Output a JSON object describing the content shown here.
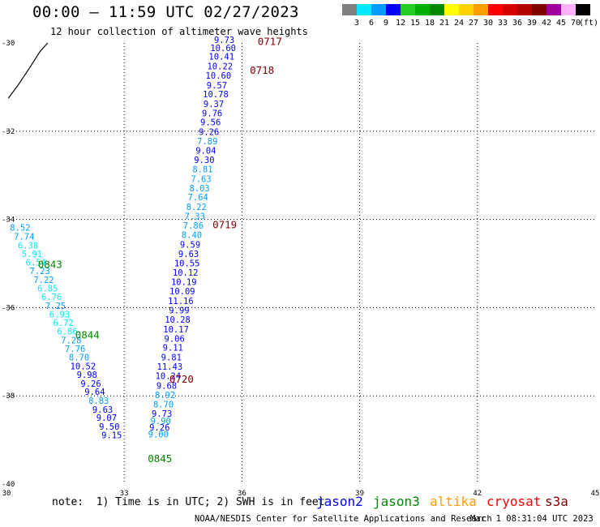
{
  "header": {
    "title": "00:00 – 11:59 UTC 02/27/2023",
    "subtitle": "12 hour collection of altimeter wave heights"
  },
  "legend": {
    "unit": "(ft)",
    "colors": [
      {
        "value": "3",
        "color": "#7f7f7f"
      },
      {
        "value": "6",
        "color": "#00e8ff"
      },
      {
        "value": "9",
        "color": "#009cff"
      },
      {
        "value": "12",
        "color": "#0000ff"
      },
      {
        "value": "15",
        "color": "#22cc22"
      },
      {
        "value": "18",
        "color": "#00b000"
      },
      {
        "value": "21",
        "color": "#008800"
      },
      {
        "value": "24",
        "color": "#ffff00"
      },
      {
        "value": "27",
        "color": "#ffd200"
      },
      {
        "value": "30",
        "color": "#ff9c00"
      },
      {
        "value": "33",
        "color": "#ff0000"
      },
      {
        "value": "36",
        "color": "#d70000"
      },
      {
        "value": "39",
        "color": "#b00000"
      },
      {
        "value": "42",
        "color": "#7f0000"
      },
      {
        "value": "45",
        "color": "#a000a0"
      },
      {
        "value": "70",
        "color": "#ffb0ff"
      },
      {
        "value": "",
        "color": "#000000"
      }
    ]
  },
  "map": {
    "lat_range": [
      -40,
      -30
    ],
    "lon_range": [
      30,
      45
    ],
    "lat_ticks": [
      "-30",
      "-32",
      "-34",
      "-36",
      "-38",
      "-40"
    ],
    "lon_ticks": [
      "30",
      "33",
      "36",
      "39",
      "42",
      "45"
    ]
  },
  "passes": [
    {
      "time": "0717",
      "lat": -30.05,
      "lon": 36.4,
      "color": "#7f0000"
    },
    {
      "time": "0718",
      "lat": -30.7,
      "lon": 36.2,
      "color": "#7f0000"
    },
    {
      "time": "0719",
      "lat": -34.2,
      "lon": 35.25,
      "color": "#7f0000"
    },
    {
      "time": "0720",
      "lat": -37.7,
      "lon": 34.15,
      "color": "#7f0000"
    },
    {
      "time": "0843",
      "lat": -35.1,
      "lon": 30.8,
      "color": "#008800"
    },
    {
      "time": "0844",
      "lat": -36.7,
      "lon": 31.75,
      "color": "#008800"
    },
    {
      "time": "0845",
      "lat": -39.5,
      "lon": 33.6,
      "color": "#008800"
    }
  ],
  "observations": [
    {
      "v": "9.73",
      "lat": -30.0,
      "lon": 35.55,
      "color": "#0000ff"
    },
    {
      "v": "10.60",
      "lat": -30.18,
      "lon": 35.52,
      "color": "#0000ff"
    },
    {
      "v": "10.41",
      "lat": -30.38,
      "lon": 35.48,
      "color": "#0000ff"
    },
    {
      "v": "10.22",
      "lat": -30.6,
      "lon": 35.44,
      "color": "#0000ff"
    },
    {
      "v": "10.60",
      "lat": -30.81,
      "lon": 35.4,
      "color": "#0000ff"
    },
    {
      "v": "9.57",
      "lat": -31.03,
      "lon": 35.36,
      "color": "#0000ff"
    },
    {
      "v": "10.78",
      "lat": -31.23,
      "lon": 35.33,
      "color": "#0000ff"
    },
    {
      "v": "9.37",
      "lat": -31.45,
      "lon": 35.28,
      "color": "#0000ff"
    },
    {
      "v": "9.76",
      "lat": -31.66,
      "lon": 35.24,
      "color": "#0000ff"
    },
    {
      "v": "9.56",
      "lat": -31.87,
      "lon": 35.2,
      "color": "#0000ff"
    },
    {
      "v": "9.26",
      "lat": -32.09,
      "lon": 35.16,
      "color": "#0000ff"
    },
    {
      "v": "7.89",
      "lat": -32.3,
      "lon": 35.12,
      "color": "#009cff"
    },
    {
      "v": "9.04",
      "lat": -32.51,
      "lon": 35.08,
      "color": "#0000ff"
    },
    {
      "v": "9.30",
      "lat": -32.72,
      "lon": 35.04,
      "color": "#0000ff"
    },
    {
      "v": "8.81",
      "lat": -32.93,
      "lon": 35.0,
      "color": "#009cff"
    },
    {
      "v": "7.63",
      "lat": -33.15,
      "lon": 34.96,
      "color": "#009cff"
    },
    {
      "v": "8.03",
      "lat": -33.36,
      "lon": 34.92,
      "color": "#009cff"
    },
    {
      "v": "7.64",
      "lat": -33.57,
      "lon": 34.88,
      "color": "#009cff"
    },
    {
      "v": "8.22",
      "lat": -33.79,
      "lon": 34.84,
      "color": "#009cff"
    },
    {
      "v": "7.33",
      "lat": -34.0,
      "lon": 34.8,
      "color": "#009cff"
    },
    {
      "v": "7.86",
      "lat": -34.21,
      "lon": 34.76,
      "color": "#009cff"
    },
    {
      "v": "8.40",
      "lat": -34.42,
      "lon": 34.72,
      "color": "#009cff"
    },
    {
      "v": "9.59",
      "lat": -34.64,
      "lon": 34.68,
      "color": "#0000ff"
    },
    {
      "v": "9.63",
      "lat": -34.85,
      "lon": 34.64,
      "color": "#0000ff"
    },
    {
      "v": "10.55",
      "lat": -35.06,
      "lon": 34.6,
      "color": "#0000ff"
    },
    {
      "v": "10.12",
      "lat": -35.28,
      "lon": 34.56,
      "color": "#0000ff"
    },
    {
      "v": "10.19",
      "lat": -35.49,
      "lon": 34.52,
      "color": "#0000ff"
    },
    {
      "v": "10.09",
      "lat": -35.7,
      "lon": 34.48,
      "color": "#0000ff"
    },
    {
      "v": "11.16",
      "lat": -35.92,
      "lon": 34.44,
      "color": "#0000ff"
    },
    {
      "v": "9.99",
      "lat": -36.13,
      "lon": 34.4,
      "color": "#0000ff"
    },
    {
      "v": "10.28",
      "lat": -36.34,
      "lon": 34.36,
      "color": "#0000ff"
    },
    {
      "v": "10.17",
      "lat": -36.56,
      "lon": 34.32,
      "color": "#0000ff"
    },
    {
      "v": "9.06",
      "lat": -36.77,
      "lon": 34.28,
      "color": "#0000ff"
    },
    {
      "v": "9.11",
      "lat": -36.98,
      "lon": 34.24,
      "color": "#0000ff"
    },
    {
      "v": "9.81",
      "lat": -37.2,
      "lon": 34.2,
      "color": "#0000ff"
    },
    {
      "v": "11.43",
      "lat": -37.41,
      "lon": 34.16,
      "color": "#0000ff"
    },
    {
      "v": "10.24",
      "lat": -37.62,
      "lon": 34.12,
      "color": "#0000ff"
    },
    {
      "v": "9.68",
      "lat": -37.84,
      "lon": 34.08,
      "color": "#0000ff"
    },
    {
      "v": "8.92",
      "lat": -38.05,
      "lon": 34.04,
      "color": "#009cff"
    },
    {
      "v": "8.70",
      "lat": -38.26,
      "lon": 34.0,
      "color": "#009cff"
    },
    {
      "v": "9.73",
      "lat": -38.47,
      "lon": 33.96,
      "color": "#0000ff"
    },
    {
      "v": "9.90",
      "lat": -38.64,
      "lon": 33.93,
      "color": "#009cff"
    },
    {
      "v": "9.26",
      "lat": -38.79,
      "lon": 33.9,
      "color": "#0000ff"
    },
    {
      "v": "9.00",
      "lat": -38.94,
      "lon": 33.87,
      "color": "#009cff"
    },
    {
      "v": "8.52",
      "lat": -34.26,
      "lon": 30.35,
      "color": "#009cff"
    },
    {
      "v": "7.74",
      "lat": -34.46,
      "lon": 30.45,
      "color": "#009cff"
    },
    {
      "v": "6.38",
      "lat": -34.66,
      "lon": 30.55,
      "color": "#00e8ff"
    },
    {
      "v": "5.91",
      "lat": -34.85,
      "lon": 30.65,
      "color": "#00e8ff"
    },
    {
      "v": "6.54",
      "lat": -35.05,
      "lon": 30.75,
      "color": "#00e8ff"
    },
    {
      "v": "7.23",
      "lat": -35.24,
      "lon": 30.85,
      "color": "#009cff"
    },
    {
      "v": "7.22",
      "lat": -35.44,
      "lon": 30.95,
      "color": "#009cff"
    },
    {
      "v": "6.85",
      "lat": -35.63,
      "lon": 31.05,
      "color": "#00e8ff"
    },
    {
      "v": "6.76",
      "lat": -35.83,
      "lon": 31.15,
      "color": "#00e8ff"
    },
    {
      "v": "7.25",
      "lat": -36.03,
      "lon": 31.25,
      "color": "#009cff"
    },
    {
      "v": "6.93",
      "lat": -36.22,
      "lon": 31.35,
      "color": "#00e8ff"
    },
    {
      "v": "6.72",
      "lat": -36.42,
      "lon": 31.45,
      "color": "#00e8ff"
    },
    {
      "v": "6.86",
      "lat": -36.61,
      "lon": 31.55,
      "color": "#00e8ff"
    },
    {
      "v": "7.28",
      "lat": -36.81,
      "lon": 31.65,
      "color": "#009cff"
    },
    {
      "v": "7.76",
      "lat": -37.0,
      "lon": 31.75,
      "color": "#009cff"
    },
    {
      "v": "8.70",
      "lat": -37.2,
      "lon": 31.85,
      "color": "#009cff"
    },
    {
      "v": "10.52",
      "lat": -37.4,
      "lon": 31.95,
      "color": "#0000ff"
    },
    {
      "v": "9.98",
      "lat": -37.59,
      "lon": 32.05,
      "color": "#0000ff"
    },
    {
      "v": "9.26",
      "lat": -37.79,
      "lon": 32.15,
      "color": "#0000ff"
    },
    {
      "v": "9.64",
      "lat": -37.98,
      "lon": 32.25,
      "color": "#0000ff"
    },
    {
      "v": "8.83",
      "lat": -38.18,
      "lon": 32.35,
      "color": "#009cff"
    },
    {
      "v": "9.63",
      "lat": -38.38,
      "lon": 32.45,
      "color": "#0000ff"
    },
    {
      "v": "9.07",
      "lat": -38.57,
      "lon": 32.55,
      "color": "#0000ff"
    },
    {
      "v": "9.50",
      "lat": -38.77,
      "lon": 32.62,
      "color": "#0000ff"
    },
    {
      "v": "9.15",
      "lat": -38.96,
      "lon": 32.68,
      "color": "#0000ff"
    }
  ],
  "coastline": [
    [
      30.05,
      -31.25
    ],
    [
      30.3,
      -30.95
    ],
    [
      30.6,
      -30.55
    ],
    [
      30.85,
      -30.2
    ],
    [
      31.05,
      -30.0
    ]
  ],
  "footer": {
    "note": "note:  1) Time is in UTC; 2) SWH is in feet",
    "satellites": [
      {
        "name": "jason2",
        "color": "#0000ff"
      },
      {
        "name": "jason3",
        "color": "#008800"
      },
      {
        "name": "altika",
        "color": "#ff9c00"
      },
      {
        "name": "cryosat",
        "color": "#ff0000"
      },
      {
        "name": "s3a",
        "color": "#7f0000"
      }
    ],
    "credit": "NOAA/NESDIS Center for Satellite Applications and Research",
    "timestamp": "Mar  1 08:31:04 UTC 2023"
  }
}
